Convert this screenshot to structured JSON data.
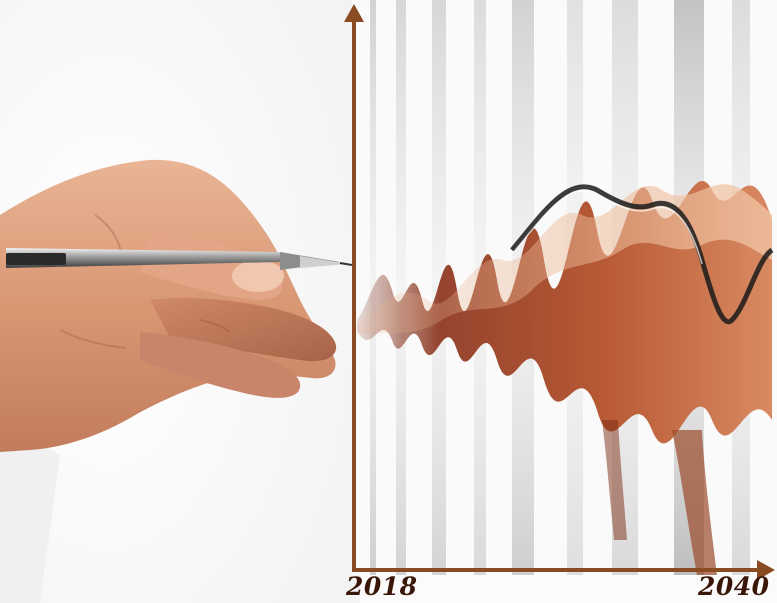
{
  "image": {
    "subject": "hand-with-pen-drawing-waveform",
    "axis_color": "#8a4a22",
    "wave_colors": [
      "#7a2a12",
      "#c46a45",
      "#e8b08c",
      "#1c1c1c"
    ]
  },
  "axis": {
    "start_label": "2018",
    "end_label": "2040"
  }
}
